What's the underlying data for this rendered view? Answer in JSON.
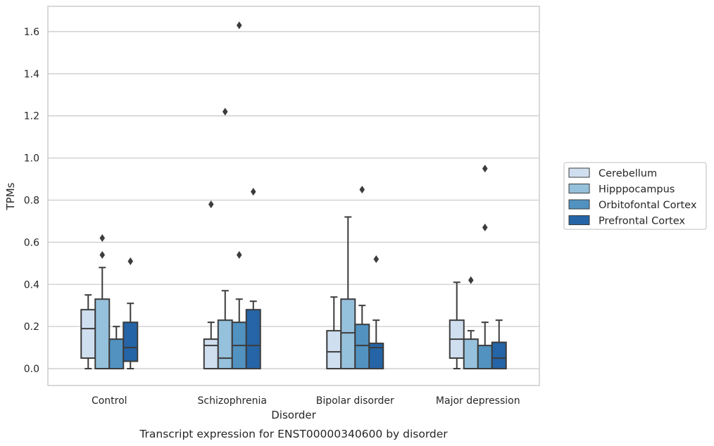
{
  "chart_data": {
    "type": "box",
    "title": "",
    "caption": "Transcript expression for ENST00000340600 by disorder",
    "xlabel": "Disorder",
    "ylabel": "TPMs",
    "ylim": [
      -0.08,
      1.72
    ],
    "yticks": [
      "0.0",
      "0.2",
      "0.4",
      "0.6",
      "0.8",
      "1.0",
      "1.2",
      "1.4",
      "1.6"
    ],
    "ytick_values": [
      0.0,
      0.2,
      0.4,
      0.6,
      0.8,
      1.0,
      1.2,
      1.4,
      1.6
    ],
    "grid": true,
    "legend_position": "right",
    "categories": [
      "Control",
      "Schizophrenia",
      "Bipolar disorder",
      "Major depression"
    ],
    "series": [
      {
        "name": "Cerebellum",
        "color": "#d0dff0",
        "boxes": [
          {
            "whislo": 0.0,
            "q1": 0.05,
            "med": 0.19,
            "q3": 0.28,
            "whishi": 0.35,
            "fliers": []
          },
          {
            "whislo": 0.0,
            "q1": 0.0,
            "med": 0.11,
            "q3": 0.14,
            "whishi": 0.22,
            "fliers": [
              0.78
            ]
          },
          {
            "whislo": 0.0,
            "q1": 0.0,
            "med": 0.08,
            "q3": 0.18,
            "whishi": 0.34,
            "fliers": []
          },
          {
            "whislo": 0.0,
            "q1": 0.05,
            "med": 0.14,
            "q3": 0.23,
            "whishi": 0.41,
            "fliers": []
          }
        ]
      },
      {
        "name": "Hipppocampus",
        "color": "#96c1dc",
        "boxes": [
          {
            "whislo": 0.0,
            "q1": 0.0,
            "med": 0.0,
            "q3": 0.33,
            "whishi": 0.48,
            "fliers": [
              0.54,
              0.62
            ]
          },
          {
            "whislo": 0.0,
            "q1": 0.0,
            "med": 0.05,
            "q3": 0.23,
            "whishi": 0.37,
            "fliers": [
              1.22
            ]
          },
          {
            "whislo": 0.0,
            "q1": 0.0,
            "med": 0.17,
            "q3": 0.33,
            "whishi": 0.72,
            "fliers": []
          },
          {
            "whislo": 0.0,
            "q1": 0.0,
            "med": 0.0,
            "q3": 0.14,
            "whishi": 0.18,
            "fliers": [
              0.42
            ]
          }
        ]
      },
      {
        "name": "Orbitofontal Cortex",
        "color": "#5192c1",
        "boxes": [
          {
            "whislo": 0.0,
            "q1": 0.0,
            "med": 0.0,
            "q3": 0.14,
            "whishi": 0.2,
            "fliers": []
          },
          {
            "whislo": 0.0,
            "q1": 0.0,
            "med": 0.11,
            "q3": 0.22,
            "whishi": 0.33,
            "fliers": [
              0.54,
              1.63
            ]
          },
          {
            "whislo": 0.0,
            "q1": 0.0,
            "med": 0.11,
            "q3": 0.21,
            "whishi": 0.3,
            "fliers": [
              0.85
            ]
          },
          {
            "whislo": 0.0,
            "q1": 0.0,
            "med": 0.0,
            "q3": 0.11,
            "whishi": 0.22,
            "fliers": [
              0.67,
              0.95
            ]
          }
        ]
      },
      {
        "name": "Prefrontal Cortex",
        "color": "#2564a6",
        "boxes": [
          {
            "whislo": 0.0,
            "q1": 0.035,
            "med": 0.1,
            "q3": 0.22,
            "whishi": 0.31,
            "fliers": [
              0.51
            ]
          },
          {
            "whislo": 0.0,
            "q1": 0.0,
            "med": 0.11,
            "q3": 0.28,
            "whishi": 0.32,
            "fliers": [
              0.84
            ]
          },
          {
            "whislo": 0.0,
            "q1": 0.0,
            "med": 0.1,
            "q3": 0.12,
            "whishi": 0.23,
            "fliers": [
              0.52
            ]
          },
          {
            "whislo": 0.0,
            "q1": 0.0,
            "med": 0.05,
            "q3": 0.125,
            "whishi": 0.23,
            "fliers": []
          }
        ]
      }
    ]
  }
}
